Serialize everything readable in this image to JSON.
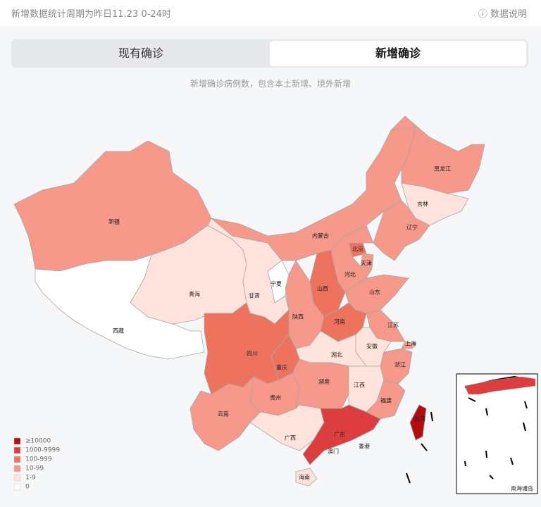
{
  "header": {
    "period": "新增数据统计周期为昨日11.23 0-24时",
    "help": "数据说明"
  },
  "tabs": [
    "现有确诊",
    "新增确诊"
  ],
  "note": "新增确诊病例数，包含本土新增、境外新增",
  "legend": [
    {
      "label": "≥10000",
      "color": "#b30c10"
    },
    {
      "label": "1000-9999",
      "color": "#dc3d3f"
    },
    {
      "label": "100-999",
      "color": "#ee735e"
    },
    {
      "label": "10-99",
      "color": "#f6988a"
    },
    {
      "label": "1-9",
      "color": "#fde3dc"
    },
    {
      "label": "0",
      "color": "#ffffff"
    }
  ],
  "map": {
    "provinces": [
      {
        "name": "新疆",
        "level": 3
      },
      {
        "name": "西藏",
        "level": 5
      },
      {
        "name": "青海",
        "level": 4
      },
      {
        "name": "甘肃",
        "level": 4
      },
      {
        "name": "宁夏",
        "level": 5
      },
      {
        "name": "内蒙古",
        "level": 3
      },
      {
        "name": "黑龙江",
        "level": 3
      },
      {
        "name": "吉林",
        "level": 4
      },
      {
        "name": "辽宁",
        "level": 3
      },
      {
        "name": "北京",
        "level": 2
      },
      {
        "name": "天津",
        "level": 3
      },
      {
        "name": "河北",
        "level": 3
      },
      {
        "name": "山西",
        "level": 2
      },
      {
        "name": "山东",
        "level": 3
      },
      {
        "name": "陕西",
        "level": 3
      },
      {
        "name": "河南",
        "level": 2
      },
      {
        "name": "江苏",
        "level": 3
      },
      {
        "name": "上海",
        "level": 3
      },
      {
        "name": "安徽",
        "level": 4
      },
      {
        "name": "浙江",
        "level": 3
      },
      {
        "name": "湖北",
        "level": 4
      },
      {
        "name": "重庆",
        "level": 2
      },
      {
        "name": "四川",
        "level": 2
      },
      {
        "name": "贵州",
        "level": 3
      },
      {
        "name": "云南",
        "level": 3
      },
      {
        "name": "湖南",
        "level": 3
      },
      {
        "name": "江西",
        "level": 4
      },
      {
        "name": "福建",
        "level": 3
      },
      {
        "name": "广西",
        "level": 4
      },
      {
        "name": "广东",
        "level": 1
      },
      {
        "name": "海南",
        "level": 4
      },
      {
        "name": "台湾",
        "level": 0
      }
    ],
    "extra_labels": [
      "香港",
      "澳门"
    ]
  },
  "inset": {
    "label": "南海诸岛"
  }
}
